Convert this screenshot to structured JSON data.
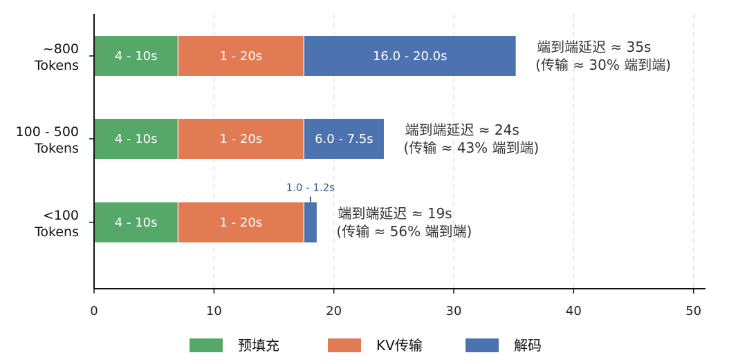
{
  "chart_data": {
    "type": "bar",
    "orientation": "horizontal",
    "stacked": true,
    "categories": [
      "~800\nTokens",
      "100 - 500\nTokens",
      "<100\nTokens"
    ],
    "series": [
      {
        "name": "预填充",
        "color": "#55a868",
        "values": [
          7.0,
          7.0,
          7.0
        ],
        "labels": [
          "4 - 10s",
          "4 - 10s",
          "4 - 10s"
        ]
      },
      {
        "name": "KV传输",
        "color": "#e07b54",
        "values": [
          10.5,
          10.5,
          10.5
        ],
        "labels": [
          "1 - 20s",
          "1 - 20s",
          "1 - 20s"
        ]
      },
      {
        "name": "解码",
        "color": "#4c72b0",
        "values": [
          17.7,
          6.7,
          1.1
        ],
        "labels": [
          "16.0 - 20.0s",
          "6.0 - 7.5s",
          "1.0 - 1.2s"
        ]
      }
    ],
    "annotations": [
      {
        "line1": "端到端延迟 ≈ 35s",
        "line2": "(传输 ≈ 30% 端到端)"
      },
      {
        "line1": "端到端延迟 ≈ 24s",
        "line2": "(传输 ≈ 43% 端到端)"
      },
      {
        "line1": "端到端延迟 ≈ 19s",
        "line2": "(传输 ≈ 56% 端到端)"
      }
    ],
    "xlim": [
      0,
      51
    ],
    "xticks": [
      0,
      10,
      20,
      30,
      40,
      50
    ],
    "grid": "x-dashed",
    "legend_position": "bottom"
  }
}
